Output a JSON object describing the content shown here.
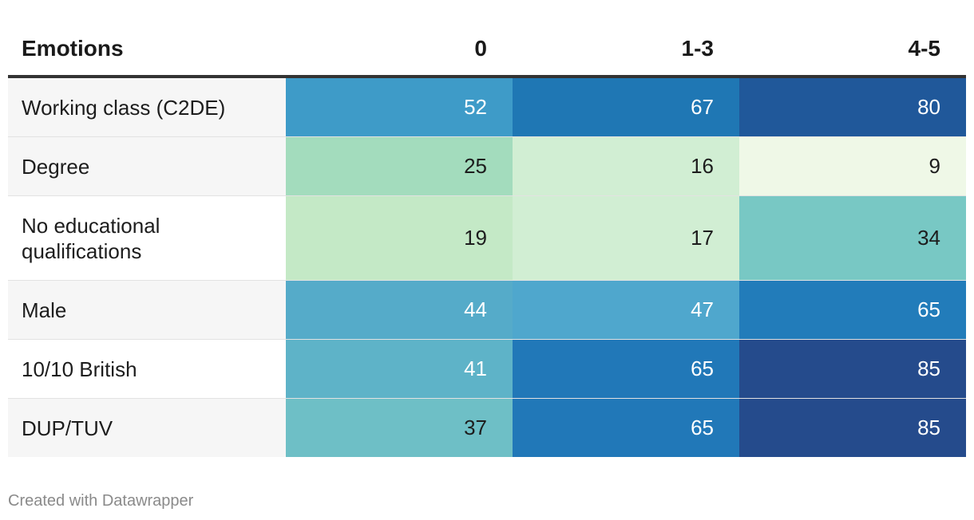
{
  "chart_data": {
    "type": "table",
    "header": {
      "label": "Emotions",
      "columns": [
        "0",
        "1-3",
        "4-5"
      ]
    },
    "rows": [
      {
        "label": "Working class (C2DE)",
        "values": [
          "52",
          "67",
          "80"
        ]
      },
      {
        "label": "Degree",
        "values": [
          "25",
          "16",
          "9"
        ]
      },
      {
        "label": "No educational qualifications",
        "values": [
          "19",
          "17",
          "34"
        ]
      },
      {
        "label": "Male",
        "values": [
          "44",
          "47",
          "65"
        ]
      },
      {
        "label": "10/10 British",
        "values": [
          "41",
          "65",
          "85"
        ]
      },
      {
        "label": "DUP/TUV",
        "values": [
          "37",
          "65",
          "85"
        ]
      }
    ],
    "cell_colors": [
      [
        "#3e9bc8",
        "#1f77b4",
        "#20589a"
      ],
      [
        "#a3dcbd",
        "#d1eed3",
        "#eff8e7"
      ],
      [
        "#c4e9c6",
        "#d1eed3",
        "#78c8c4"
      ],
      [
        "#55abc9",
        "#4fa7cd",
        "#227cba"
      ],
      [
        "#5eb3c8",
        "#2178b8",
        "#254b8c"
      ],
      [
        "#6ebfc6",
        "#2178b8",
        "#254b8c"
      ]
    ],
    "cell_text_colors": [
      [
        "#ffffff",
        "#ffffff",
        "#ffffff"
      ],
      [
        "#1d1d1d",
        "#1d1d1d",
        "#1d1d1d"
      ],
      [
        "#1d1d1d",
        "#1d1d1d",
        "#1d1d1d"
      ],
      [
        "#ffffff",
        "#ffffff",
        "#ffffff"
      ],
      [
        "#ffffff",
        "#ffffff",
        "#ffffff"
      ],
      [
        "#1d1d1d",
        "#ffffff",
        "#ffffff"
      ]
    ]
  },
  "footer": {
    "credit": "Created with Datawrapper"
  }
}
